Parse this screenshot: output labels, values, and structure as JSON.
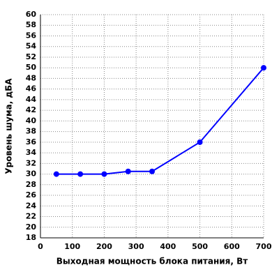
{
  "chart_data": {
    "type": "line",
    "x_label": "Выходная мощность блока питания, Вт",
    "y_label": "Уровень шума, дБА",
    "x": [
      50,
      125,
      200,
      275,
      350,
      500,
      700
    ],
    "series": [
      {
        "color": "#0000ff",
        "values": [
          30,
          30,
          30,
          30.5,
          30.5,
          36,
          50
        ]
      }
    ],
    "xlim": [
      0,
      700
    ],
    "xticks": [
      0,
      100,
      200,
      300,
      400,
      500,
      600,
      700
    ],
    "ylim": [
      18,
      60
    ],
    "yticks": [
      18,
      20,
      22,
      24,
      26,
      28,
      30,
      32,
      34,
      36,
      38,
      40,
      42,
      44,
      46,
      48,
      50,
      52,
      54,
      56,
      58,
      60
    ],
    "grid": true
  }
}
